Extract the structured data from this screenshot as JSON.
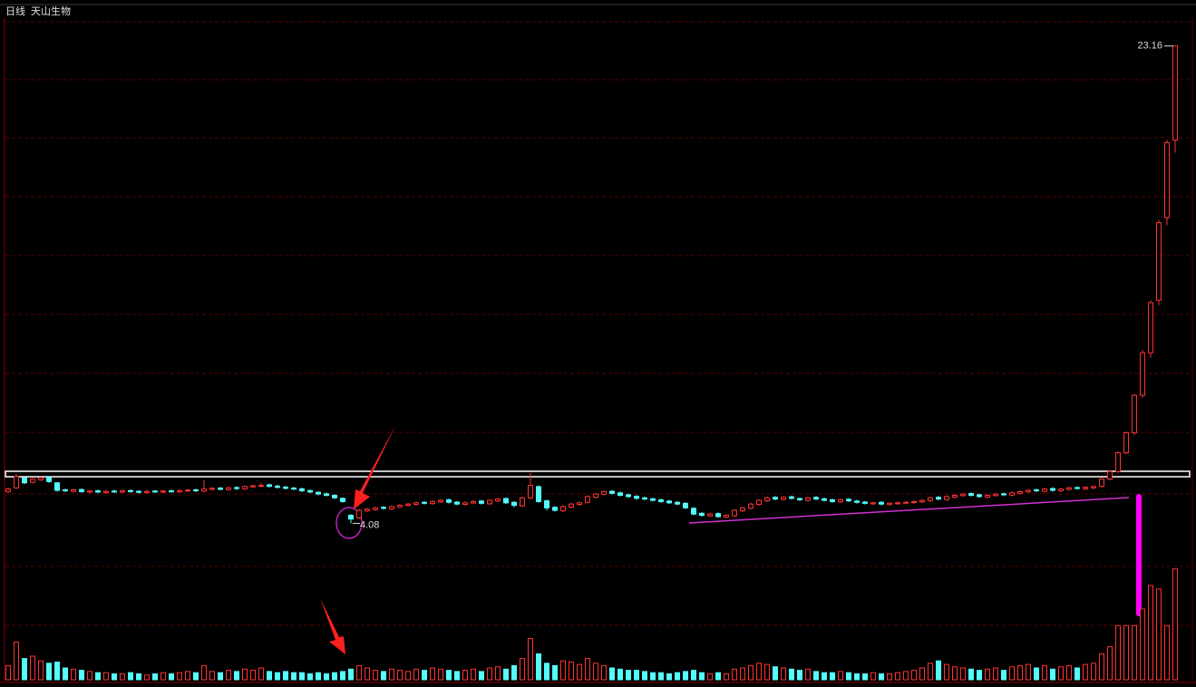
{
  "chart_data": {
    "type": "candlestick",
    "period": "日线",
    "title": "天山生物",
    "up_color": "#ff3232",
    "down_color": "#54fcfc",
    "ylim": [
      2.9,
      25
    ],
    "volume_lim": [
      0,
      100
    ],
    "open": [
      5.35,
      5.5,
      5.9,
      5.72,
      5.82,
      5.92,
      5.7,
      5.42,
      5.36,
      5.43,
      5.33,
      5.38,
      5.31,
      5.37,
      5.33,
      5.39,
      5.36,
      5.31,
      5.37,
      5.33,
      5.38,
      5.34,
      5.38,
      5.42,
      5.37,
      5.44,
      5.49,
      5.43,
      5.51,
      5.46,
      5.54,
      5.57,
      5.62,
      5.57,
      5.53,
      5.49,
      5.46,
      5.39,
      5.32,
      5.26,
      5.2,
      5.08,
      4.4,
      4.3,
      4.58,
      4.63,
      4.72,
      4.66,
      4.74,
      4.8,
      4.84,
      4.92,
      4.87,
      4.94,
      5.02,
      4.93,
      4.84,
      4.89,
      4.97,
      4.86,
      4.98,
      5.07,
      4.92,
      4.78,
      5.1,
      5.55,
      4.98,
      4.72,
      4.58,
      4.73,
      4.84,
      4.92,
      5.12,
      5.24,
      5.36,
      5.3,
      5.22,
      5.16,
      5.1,
      5.06,
      5.02,
      4.97,
      4.92,
      4.88,
      4.68,
      4.48,
      4.38,
      4.47,
      4.33,
      4.38,
      4.58,
      4.68,
      4.84,
      4.98,
      5.12,
      5.04,
      5.14,
      5.07,
      5.0,
      5.12,
      5.06,
      5.02,
      4.94,
      5.04,
      4.97,
      4.93,
      4.86,
      4.92,
      4.83,
      4.87,
      4.9,
      4.91,
      4.94,
      4.99,
      5.12,
      5.03,
      5.13,
      5.19,
      5.27,
      5.22,
      5.13,
      5.19,
      5.26,
      5.21,
      5.28,
      5.34,
      5.42,
      5.36,
      5.47,
      5.38,
      5.44,
      5.51,
      5.46,
      5.5,
      5.56,
      5.85,
      6.15,
      6.9,
      7.7,
      9.2,
      10.9,
      13.0,
      16.3,
      19.4
    ],
    "high": [
      5.5,
      6.05,
      5.95,
      5.9,
      5.95,
      5.97,
      5.72,
      5.47,
      5.47,
      5.48,
      5.42,
      5.43,
      5.41,
      5.42,
      5.43,
      5.44,
      5.41,
      5.41,
      5.42,
      5.42,
      5.43,
      5.44,
      5.46,
      5.47,
      5.8,
      5.53,
      5.54,
      5.55,
      5.56,
      5.6,
      5.63,
      5.7,
      5.67,
      5.62,
      5.58,
      5.54,
      5.51,
      5.44,
      5.37,
      5.31,
      5.25,
      5.12,
      4.45,
      4.65,
      4.7,
      4.75,
      4.77,
      4.8,
      4.85,
      4.9,
      4.95,
      4.97,
      5.0,
      5.05,
      5.07,
      4.98,
      4.95,
      5.0,
      5.02,
      5.05,
      5.1,
      5.12,
      4.97,
      5.15,
      6.1,
      5.6,
      5.03,
      4.77,
      4.8,
      4.9,
      4.95,
      5.2,
      5.3,
      5.4,
      5.41,
      5.35,
      5.27,
      5.21,
      5.15,
      5.11,
      5.07,
      5.02,
      4.97,
      4.93,
      4.73,
      4.53,
      4.5,
      4.52,
      4.45,
      4.65,
      4.75,
      4.9,
      5.05,
      5.15,
      5.17,
      5.17,
      5.19,
      5.12,
      5.15,
      5.17,
      5.11,
      5.07,
      5.07,
      5.09,
      5.02,
      4.98,
      4.95,
      4.97,
      4.93,
      4.95,
      4.97,
      5.0,
      5.05,
      5.15,
      5.17,
      5.2,
      5.25,
      5.3,
      5.32,
      5.27,
      5.25,
      5.3,
      5.31,
      5.35,
      5.4,
      5.45,
      5.47,
      5.5,
      5.52,
      5.5,
      5.55,
      5.56,
      5.57,
      5.6,
      5.9,
      6.2,
      6.95,
      7.75,
      9.25,
      11.0,
      13.0,
      16.2,
      19.4,
      23.16
    ],
    "low": [
      5.3,
      5.45,
      5.65,
      5.68,
      5.78,
      5.7,
      5.35,
      5.33,
      5.31,
      5.3,
      5.28,
      5.28,
      5.26,
      5.29,
      5.28,
      5.3,
      5.27,
      5.26,
      5.29,
      5.28,
      5.3,
      5.29,
      5.33,
      5.33,
      5.32,
      5.39,
      5.39,
      5.38,
      5.42,
      5.41,
      5.49,
      5.52,
      5.51,
      5.47,
      5.43,
      5.4,
      5.33,
      5.28,
      5.2,
      5.15,
      5.05,
      4.9,
      4.08,
      4.25,
      4.53,
      4.58,
      4.63,
      4.61,
      4.69,
      4.75,
      4.79,
      4.83,
      4.82,
      4.89,
      4.87,
      4.8,
      4.79,
      4.84,
      4.83,
      4.81,
      4.93,
      4.85,
      4.72,
      4.73,
      5.05,
      4.9,
      4.6,
      4.55,
      4.53,
      4.68,
      4.79,
      4.87,
      5.07,
      5.19,
      5.23,
      5.15,
      5.1,
      5.03,
      5.0,
      4.95,
      4.9,
      4.85,
      4.8,
      4.65,
      4.4,
      4.35,
      4.33,
      4.3,
      4.28,
      4.33,
      4.53,
      4.63,
      4.79,
      4.93,
      5.0,
      4.99,
      5.03,
      4.97,
      4.95,
      5.0,
      4.95,
      4.9,
      4.89,
      4.93,
      4.87,
      4.83,
      4.81,
      4.8,
      4.78,
      4.82,
      4.85,
      4.86,
      4.89,
      4.94,
      5.0,
      4.98,
      5.08,
      5.14,
      5.15,
      5.1,
      5.08,
      5.14,
      5.17,
      5.16,
      5.23,
      5.29,
      5.33,
      5.31,
      5.35,
      5.33,
      5.39,
      5.43,
      5.41,
      5.45,
      5.5,
      5.8,
      6.1,
      6.85,
      7.6,
      9.1,
      10.7,
      12.8,
      16.0,
      18.9
    ],
    "close": [
      5.45,
      5.95,
      5.7,
      5.85,
      5.9,
      5.75,
      5.4,
      5.38,
      5.42,
      5.35,
      5.37,
      5.33,
      5.36,
      5.34,
      5.38,
      5.35,
      5.32,
      5.36,
      5.34,
      5.37,
      5.35,
      5.39,
      5.41,
      5.38,
      5.45,
      5.48,
      5.44,
      5.5,
      5.47,
      5.55,
      5.58,
      5.6,
      5.56,
      5.52,
      5.48,
      5.45,
      5.38,
      5.33,
      5.25,
      5.2,
      5.1,
      4.95,
      4.25,
      4.6,
      4.65,
      4.7,
      4.68,
      4.75,
      4.8,
      4.85,
      4.9,
      4.88,
      4.95,
      5.0,
      4.92,
      4.85,
      4.9,
      4.95,
      4.88,
      5.0,
      5.05,
      4.9,
      4.8,
      5.1,
      5.6,
      4.95,
      4.7,
      4.6,
      4.75,
      4.85,
      4.9,
      5.15,
      5.25,
      5.35,
      5.28,
      5.2,
      5.15,
      5.08,
      5.05,
      5.0,
      4.95,
      4.9,
      4.85,
      4.7,
      4.45,
      4.4,
      4.45,
      4.35,
      4.4,
      4.6,
      4.7,
      4.85,
      5.0,
      5.1,
      5.05,
      5.12,
      5.08,
      5.02,
      5.1,
      5.05,
      5.0,
      4.95,
      5.02,
      4.98,
      4.92,
      4.88,
      4.9,
      4.85,
      4.88,
      4.9,
      4.92,
      4.95,
      5.0,
      5.1,
      5.05,
      5.15,
      5.2,
      5.25,
      5.2,
      5.15,
      5.2,
      5.25,
      5.22,
      5.3,
      5.35,
      5.4,
      5.38,
      5.45,
      5.4,
      5.45,
      5.5,
      5.48,
      5.52,
      5.55,
      5.85,
      6.15,
      6.9,
      7.7,
      9.2,
      10.9,
      12.9,
      16.1,
      19.3,
      23.16
    ],
    "volume": [
      12,
      32,
      18,
      20,
      16,
      14,
      15,
      10,
      9,
      8,
      7,
      6,
      6,
      5,
      5,
      6,
      5,
      4,
      5,
      6,
      5,
      6,
      7,
      6,
      12,
      7,
      6,
      8,
      7,
      9,
      8,
      10,
      7,
      6,
      7,
      6,
      6,
      5,
      6,
      5,
      6,
      7,
      9,
      12,
      10,
      8,
      7,
      9,
      8,
      7,
      9,
      8,
      10,
      9,
      8,
      7,
      8,
      9,
      7,
      10,
      11,
      9,
      12,
      18,
      35,
      22,
      14,
      12,
      16,
      15,
      13,
      18,
      14,
      12,
      10,
      9,
      8,
      8,
      7,
      6,
      6,
      5,
      6,
      7,
      8,
      6,
      5,
      6,
      5,
      9,
      10,
      12,
      14,
      13,
      11,
      10,
      9,
      8,
      9,
      7,
      6,
      6,
      7,
      6,
      5,
      5,
      6,
      5,
      5,
      6,
      7,
      8,
      10,
      14,
      16,
      13,
      11,
      10,
      9,
      8,
      9,
      10,
      8,
      11,
      12,
      13,
      10,
      12,
      9,
      11,
      12,
      10,
      13,
      14,
      22,
      28,
      46,
      46,
      46,
      60,
      80,
      77,
      46,
      94
    ]
  }
}
